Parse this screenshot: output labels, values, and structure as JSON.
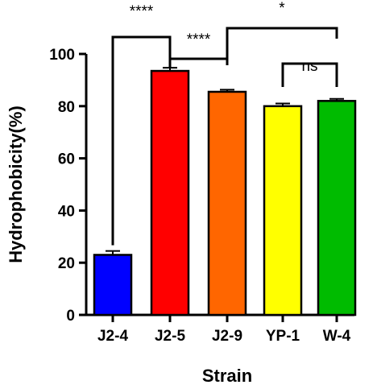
{
  "chart_data": {
    "type": "bar",
    "xlabel": "Strain",
    "ylabel": "Hydrophobicity(%)",
    "ylim": [
      0,
      100
    ],
    "yticks": [
      0,
      20,
      40,
      60,
      80,
      100
    ],
    "categories": [
      "J2-4",
      "J2-5",
      "J2-9",
      "YP-1",
      "W-4"
    ],
    "values": [
      23,
      93.5,
      85.5,
      80,
      82
    ],
    "errors": [
      1.5,
      1.2,
      0.8,
      1.0,
      0.8
    ],
    "colors": [
      "#0000ff",
      "#ff0000",
      "#ff6600",
      "#ffff00",
      "#00bb00"
    ],
    "grid": false,
    "legend": "none",
    "significance": [
      {
        "from": "J2-4",
        "to": "J2-5",
        "label": "****"
      },
      {
        "from": "J2-5",
        "to": "J2-9",
        "label": "****"
      },
      {
        "from": "J2-9",
        "to": "W-4",
        "label": "*"
      },
      {
        "from": "YP-1",
        "to": "W-4",
        "label": "ns"
      }
    ]
  }
}
